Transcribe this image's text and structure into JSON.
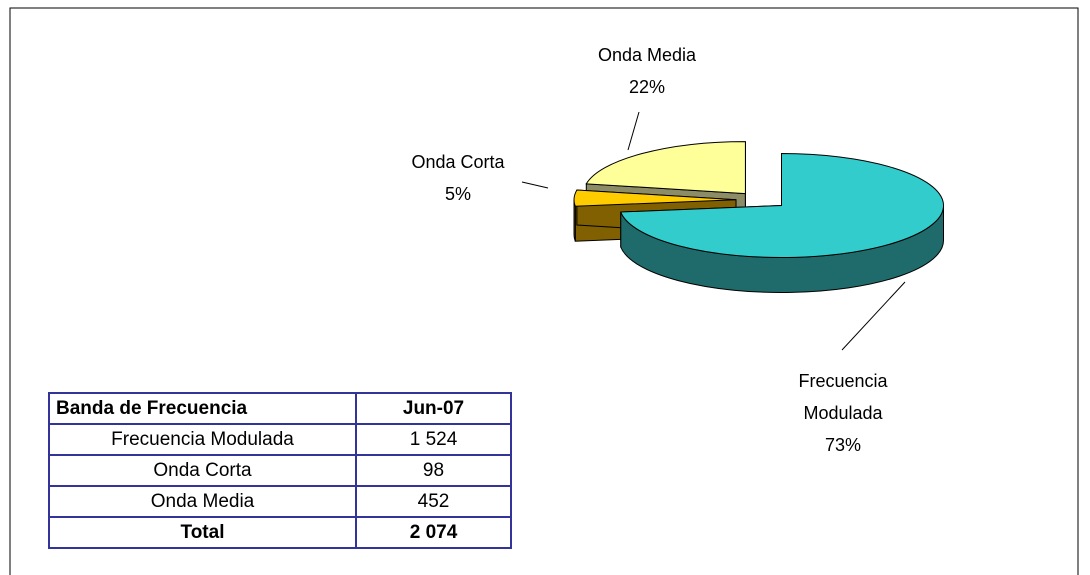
{
  "chart_data": {
    "type": "pie",
    "categories": [
      "Frecuencia Modulada",
      "Onda Corta",
      "Onda Media"
    ],
    "values": [
      73,
      5,
      22
    ],
    "value_labels": [
      "73%",
      "5%",
      "22%"
    ],
    "colors": [
      "#33CCCC",
      "#FFCC00",
      "#FFFF99"
    ],
    "side_colors": [
      "#1F6A6A",
      "#806000",
      "#8C8C66"
    ]
  },
  "table": {
    "header": [
      "Banda de Frecuencia",
      "Jun-07"
    ],
    "rows": [
      [
        "Frecuencia Modulada",
        "1 524"
      ],
      [
        "Onda Corta",
        "98"
      ],
      [
        "Onda Media",
        "452"
      ]
    ],
    "total": [
      "Total",
      "2 074"
    ]
  }
}
